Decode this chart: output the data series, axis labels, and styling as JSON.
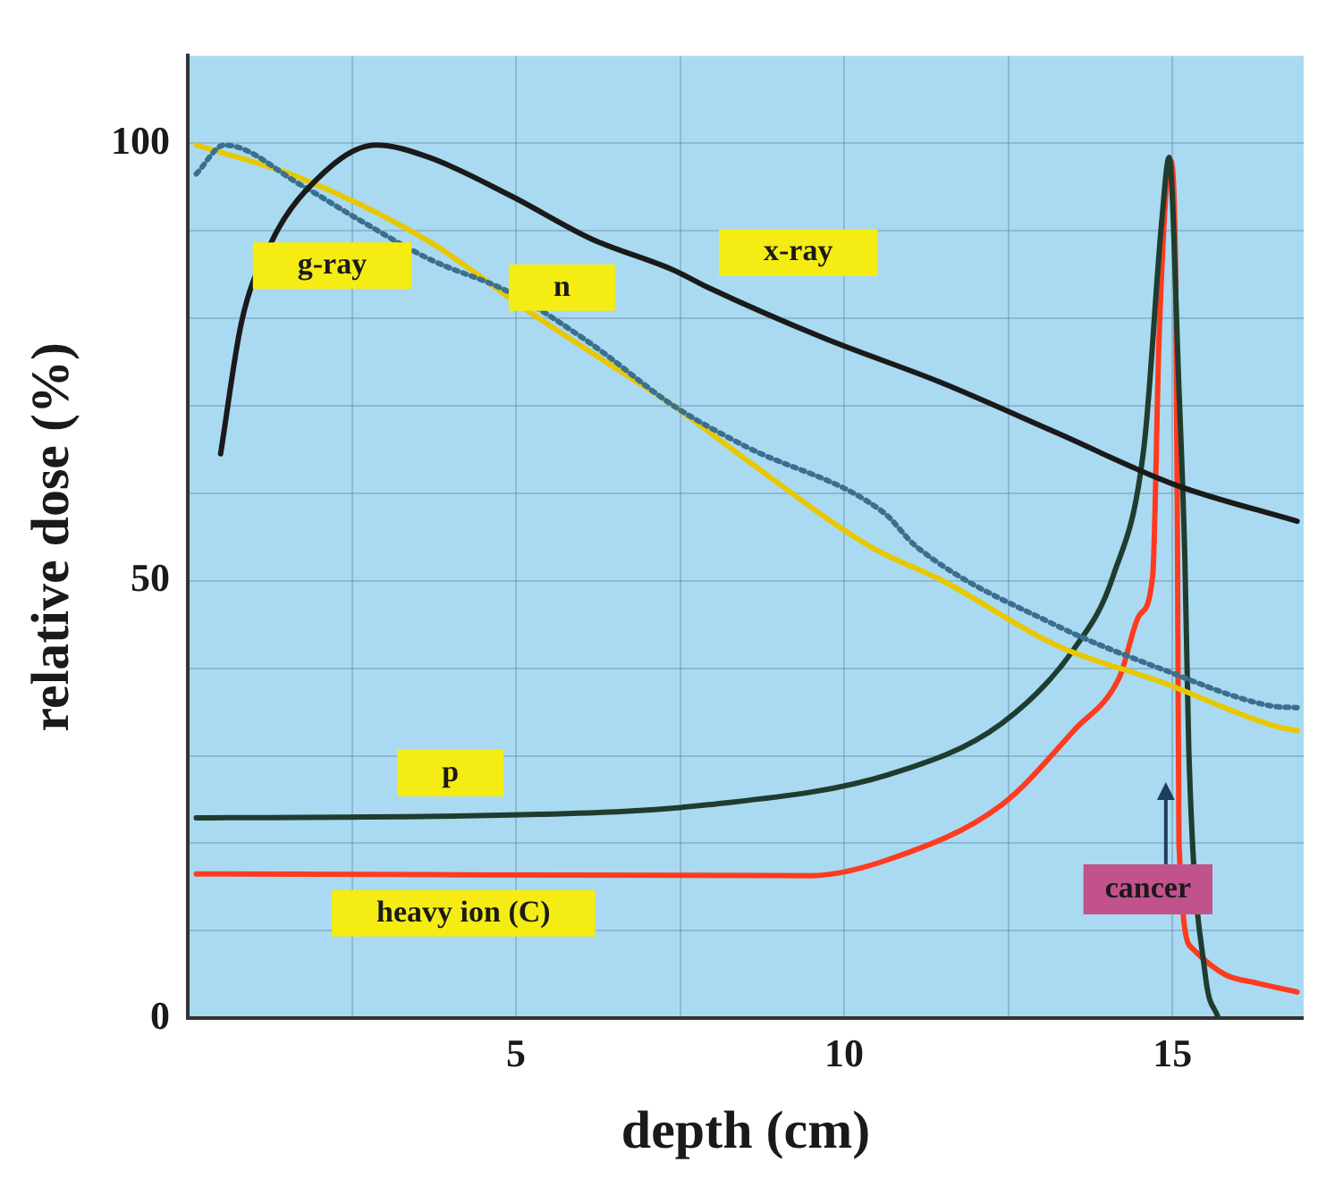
{
  "chart_data": {
    "type": "line",
    "xlabel": "depth (cm)",
    "ylabel": "relative dose (%)",
    "xlim": [
      0,
      17
    ],
    "ylim": [
      0,
      110
    ],
    "xticks": [
      {
        "value": 2.5,
        "label": null
      },
      5,
      {
        "value": 7.5,
        "label": null
      },
      10,
      {
        "value": 12.5,
        "label": null
      },
      15
    ],
    "yticks": [
      0,
      {
        "value": 10,
        "label": null
      },
      {
        "value": 20,
        "label": null
      },
      {
        "value": 30,
        "label": null
      },
      {
        "value": 40,
        "label": null
      },
      50,
      {
        "value": 60,
        "label": null
      },
      {
        "value": 70,
        "label": null
      },
      {
        "value": 80,
        "label": null
      },
      {
        "value": 90,
        "label": null
      },
      100
    ],
    "grid": true,
    "legend": false,
    "marker": "none",
    "series": [
      {
        "name": "x-ray",
        "color": "#1a1a1a",
        "line_style": "solid",
        "x": [
          0.5,
          0.82,
          1.28,
          1.8,
          2.87,
          3.67,
          4.92,
          6.14,
          7.4,
          7.93,
          9.7,
          11.46,
          13.24,
          15.03,
          16.9
        ],
        "values": [
          64.5,
          79.6,
          88.8,
          94.6,
          99.8,
          98.4,
          94,
          89.1,
          85.5,
          83.5,
          77.7,
          72.7,
          66.9,
          61,
          56.8
        ]
      },
      {
        "name": "g-ray",
        "color": "#3a6f8f",
        "line_style": "dotted",
        "x": [
          0.13,
          0.56,
          1.73,
          2.6,
          3.67,
          4.92,
          6.14,
          7.4,
          8.46,
          10.6,
          11.1,
          13.2,
          14.84,
          16.5,
          16.9
        ],
        "values": [
          96.5,
          99.8,
          95.2,
          91.3,
          86.8,
          82.9,
          77.1,
          70,
          65.5,
          57.8,
          53.9,
          45,
          39.9,
          35.7,
          35.5
        ]
      },
      {
        "name": "n",
        "color": "#e8c800",
        "line_style": "solid",
        "x": [
          0.13,
          1.73,
          3.67,
          5.27,
          6.33,
          7.4,
          8.46,
          10.4,
          11.5,
          13.24,
          14.84,
          16.6,
          16.9
        ],
        "values": [
          99.8,
          96,
          88.8,
          80.4,
          75.2,
          70,
          64.1,
          53.9,
          50,
          42.6,
          38.4,
          33.3,
          32.9
        ]
      },
      {
        "name": "p",
        "color": "#1f3d2e",
        "line_style": "solid",
        "x": [
          0.13,
          5.35,
          7.93,
          10.7,
          12.4,
          13.5,
          14.1,
          14.57,
          14.84,
          14.95,
          15.1,
          15.19,
          15.25,
          15.5,
          15.7
        ],
        "values": [
          22.9,
          23.3,
          24.4,
          27.9,
          33.7,
          42.2,
          50.6,
          65.5,
          91.3,
          98.4,
          71.9,
          52.5,
          30.6,
          5,
          0
        ]
      },
      {
        "name": "heavy ion (C)",
        "color": "#ff3b1f",
        "line_style": "solid",
        "x": [
          0.13,
          9.5,
          10.7,
          12.4,
          13.5,
          14.2,
          14.5,
          14.7,
          14.8,
          14.97,
          15.05,
          15.08,
          15.1,
          15.3,
          15.8,
          16.3,
          16.9
        ],
        "values": [
          16.5,
          16.3,
          18.2,
          24.4,
          32.9,
          39.1,
          46.1,
          50.6,
          78.5,
          98,
          85,
          50,
          20,
          8,
          5,
          4,
          3
        ]
      }
    ],
    "annotations": [
      "cancer"
    ]
  }
}
